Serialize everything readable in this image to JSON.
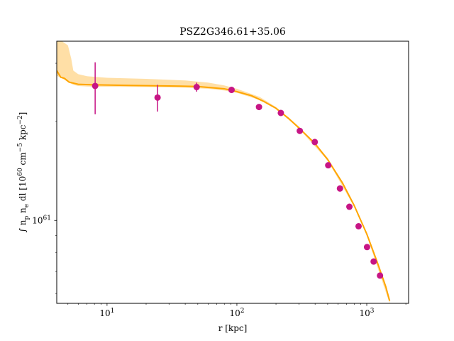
{
  "chart_data": {
    "type": "scatter",
    "title": "PSZ2G346.61+35.06",
    "xlabel": "r [kpc]",
    "ylabel": "∫ n_p n_e dl [10^60 cm^-5 kpc^-2]",
    "xscale": "log",
    "yscale": "log",
    "xlim": [
      4.1,
      2100
    ],
    "ylim": [
      5.6,
      35
    ],
    "x_major_ticks": [
      {
        "value": 10,
        "label_base": "10",
        "label_exp": "1"
      },
      {
        "value": 100,
        "label_base": "10",
        "label_exp": "2"
      },
      {
        "value": 1000,
        "label_base": "10",
        "label_exp": "3"
      }
    ],
    "y_major_ticks": [
      {
        "value": 10,
        "label_base": "10",
        "label_exp": "61"
      }
    ],
    "grid": false,
    "legend": "none",
    "colors": {
      "points": "#c71585",
      "model_line": "#ffa500",
      "model_band": "#ffdfa6"
    },
    "series": [
      {
        "kind": "points",
        "x": [
          8.1,
          24.5,
          49,
          91,
          148,
          218,
          305,
          398,
          505,
          622,
          735,
          865,
          1005,
          1130,
          1265
        ],
        "y": [
          25.6,
          23.6,
          25.4,
          24.9,
          22.1,
          21.2,
          18.7,
          17.3,
          14.7,
          12.5,
          11.0,
          9.6,
          8.3,
          7.5,
          6.8
        ],
        "yerr_low": [
          4.6,
          2.2,
          0.8,
          0.3,
          0.2,
          0.2,
          0.2,
          0.1,
          0.1,
          0.1,
          0.1,
          0.1,
          0.1,
          0.1,
          0.1
        ],
        "yerr_high": [
          4.6,
          2.2,
          0.8,
          0.3,
          0.2,
          0.2,
          0.2,
          0.1,
          0.1,
          0.1,
          0.1,
          0.1,
          0.1,
          0.1,
          0.1
        ]
      },
      {
        "kind": "model_line",
        "x": [
          4.1,
          4.4,
          4.7,
          5.1,
          6,
          8,
          15,
          30,
          50,
          80,
          100,
          130,
          160,
          200,
          250,
          300,
          400,
          500,
          650,
          800,
          1000,
          1200,
          1400,
          1500
        ],
        "y": [
          28.5,
          27.2,
          27.0,
          26.3,
          25.9,
          25.8,
          25.7,
          25.6,
          25.5,
          25.1,
          24.6,
          23.9,
          23.0,
          21.9,
          20.4,
          19.1,
          17.1,
          15.3,
          13.0,
          11.1,
          9.1,
          7.5,
          6.3,
          5.7
        ]
      },
      {
        "kind": "model_band",
        "x": [
          4.1,
          4.5,
          5.0,
          5.3,
          5.5,
          6,
          7,
          10,
          20,
          40,
          60,
          80,
          100,
          150,
          200,
          300,
          500,
          800,
          1000,
          1500
        ],
        "y_low": [
          27.5,
          27.0,
          26.3,
          26.0,
          25.8,
          25.6,
          25.5,
          25.45,
          25.4,
          25.3,
          25.1,
          24.8,
          24.4,
          23.2,
          21.8,
          19.0,
          15.2,
          11.0,
          9.0,
          5.6
        ],
        "y_high": [
          35.0,
          35.0,
          34.0,
          31.0,
          28.5,
          27.8,
          27.4,
          27.1,
          26.9,
          26.6,
          26.2,
          25.7,
          25.1,
          23.7,
          22.1,
          19.3,
          15.5,
          11.2,
          9.2,
          5.8
        ]
      }
    ]
  }
}
